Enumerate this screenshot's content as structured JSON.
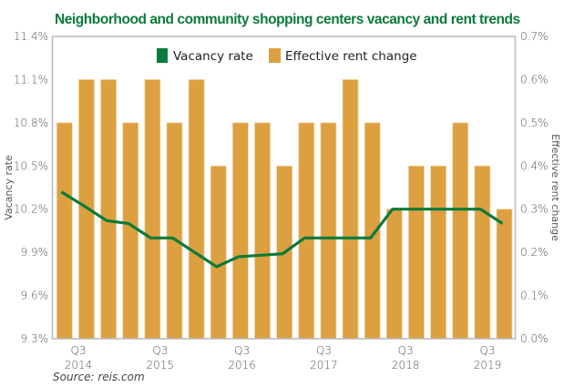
{
  "chart_data": {
    "type": "bar",
    "title": "Neighborhood and community shopping centers vacancy and rent trends",
    "source": "Source: reis.com",
    "legend": {
      "placement": "top-center",
      "entries": [
        {
          "name": "Vacancy rate",
          "color": "#0b7a3b",
          "kind": "line"
        },
        {
          "name": "Effective rent change",
          "color": "#dca040",
          "kind": "bar"
        }
      ]
    },
    "x_tick_labels": [
      {
        "quarter": "Q3",
        "year": "2014"
      },
      {
        "quarter": "Q3",
        "year": "2015"
      },
      {
        "quarter": "Q3",
        "year": "2016"
      },
      {
        "quarter": "Q3",
        "year": "2017"
      },
      {
        "quarter": "Q3",
        "year": "2018"
      },
      {
        "quarter": "Q3",
        "year": "2019"
      }
    ],
    "y_left": {
      "label": "Vacancy rate",
      "range": [
        9.3,
        11.4
      ],
      "ticks": [
        "11.4%",
        "11.1%",
        "10.8%",
        "10.5%",
        "10.2%",
        "9.9%",
        "9.6%",
        "9.3%"
      ],
      "tick_values": [
        11.4,
        11.1,
        10.8,
        10.5,
        10.2,
        9.9,
        9.6,
        9.3
      ]
    },
    "y_right": {
      "label": "Effective rent change",
      "range": [
        0.0,
        0.7
      ],
      "ticks": [
        "0.7%",
        "0.6%",
        "0.5%",
        "0.4%",
        "0.3%",
        "0.2%",
        "0.1%",
        "0.0%"
      ],
      "tick_values": [
        0.7,
        0.6,
        0.5,
        0.4,
        0.3,
        0.2,
        0.1,
        0.0
      ]
    },
    "grid": false,
    "series": [
      {
        "name": "Effective rent change",
        "type": "bar",
        "axis": "right",
        "unit": "%",
        "values": [
          0.5,
          0.6,
          0.6,
          0.5,
          0.6,
          0.5,
          0.6,
          0.4,
          0.5,
          0.5,
          0.4,
          0.5,
          0.5,
          0.6,
          0.5,
          0.3,
          0.4,
          0.4,
          0.5,
          0.4,
          0.3
        ]
      },
      {
        "name": "Vacancy rate",
        "type": "line",
        "axis": "left",
        "unit": "%",
        "values": [
          10.32,
          10.22,
          10.12,
          10.1,
          10.0,
          10.0,
          9.9,
          9.8,
          9.87,
          9.88,
          9.89,
          10.0,
          10.0,
          10.0,
          10.0,
          10.2,
          10.2,
          10.2,
          10.2,
          10.2,
          10.1
        ]
      }
    ]
  }
}
